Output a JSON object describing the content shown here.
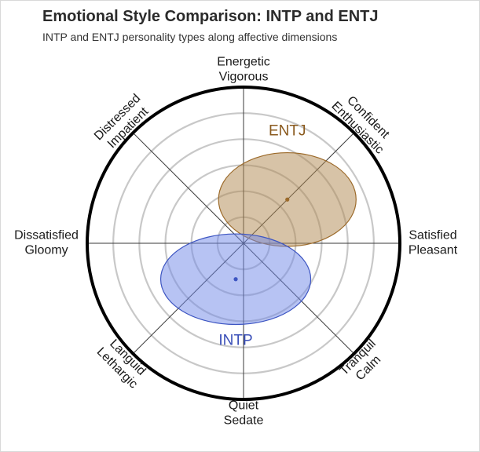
{
  "chart_data": {
    "type": "scatter",
    "subtype": "circumplex",
    "title": "Emotional Style Comparison: INTP and ENTJ",
    "subtitle": "INTP and ENTJ personality types along affective dimensions",
    "x_range": [
      -1,
      1
    ],
    "y_range": [
      -1,
      1
    ],
    "rings": 5,
    "grid": true,
    "axis_labels": [
      {
        "id": "top",
        "lines": [
          "Energetic",
          "Vigorous"
        ]
      },
      {
        "id": "top-right",
        "lines": [
          "Confident",
          "Enthusiastic"
        ]
      },
      {
        "id": "right",
        "lines": [
          "Satisfied",
          "Pleasant"
        ]
      },
      {
        "id": "bottom-right",
        "lines": [
          "Tranquil",
          "Calm"
        ]
      },
      {
        "id": "bottom",
        "lines": [
          "Quiet",
          "Sedate"
        ]
      },
      {
        "id": "bottom-left",
        "lines": [
          "Languid",
          "Lethargic"
        ]
      },
      {
        "id": "left",
        "lines": [
          "Dissatisfied",
          "Gloomy"
        ]
      },
      {
        "id": "top-left",
        "lines": [
          "Distressed",
          "Impatient"
        ]
      }
    ],
    "series": [
      {
        "name": "ENTJ",
        "x": 0.28,
        "y": 0.28,
        "rx": 0.44,
        "ry": 0.3,
        "fill": "#b08850",
        "stroke": "#9c6a2a",
        "label_color": "#8a5a1e"
      },
      {
        "name": "INTP",
        "x": -0.05,
        "y": -0.23,
        "rx": 0.48,
        "ry": 0.29,
        "fill": "#6f88e8",
        "stroke": "#3d55c2",
        "label_color": "#3a4fb8"
      }
    ]
  }
}
